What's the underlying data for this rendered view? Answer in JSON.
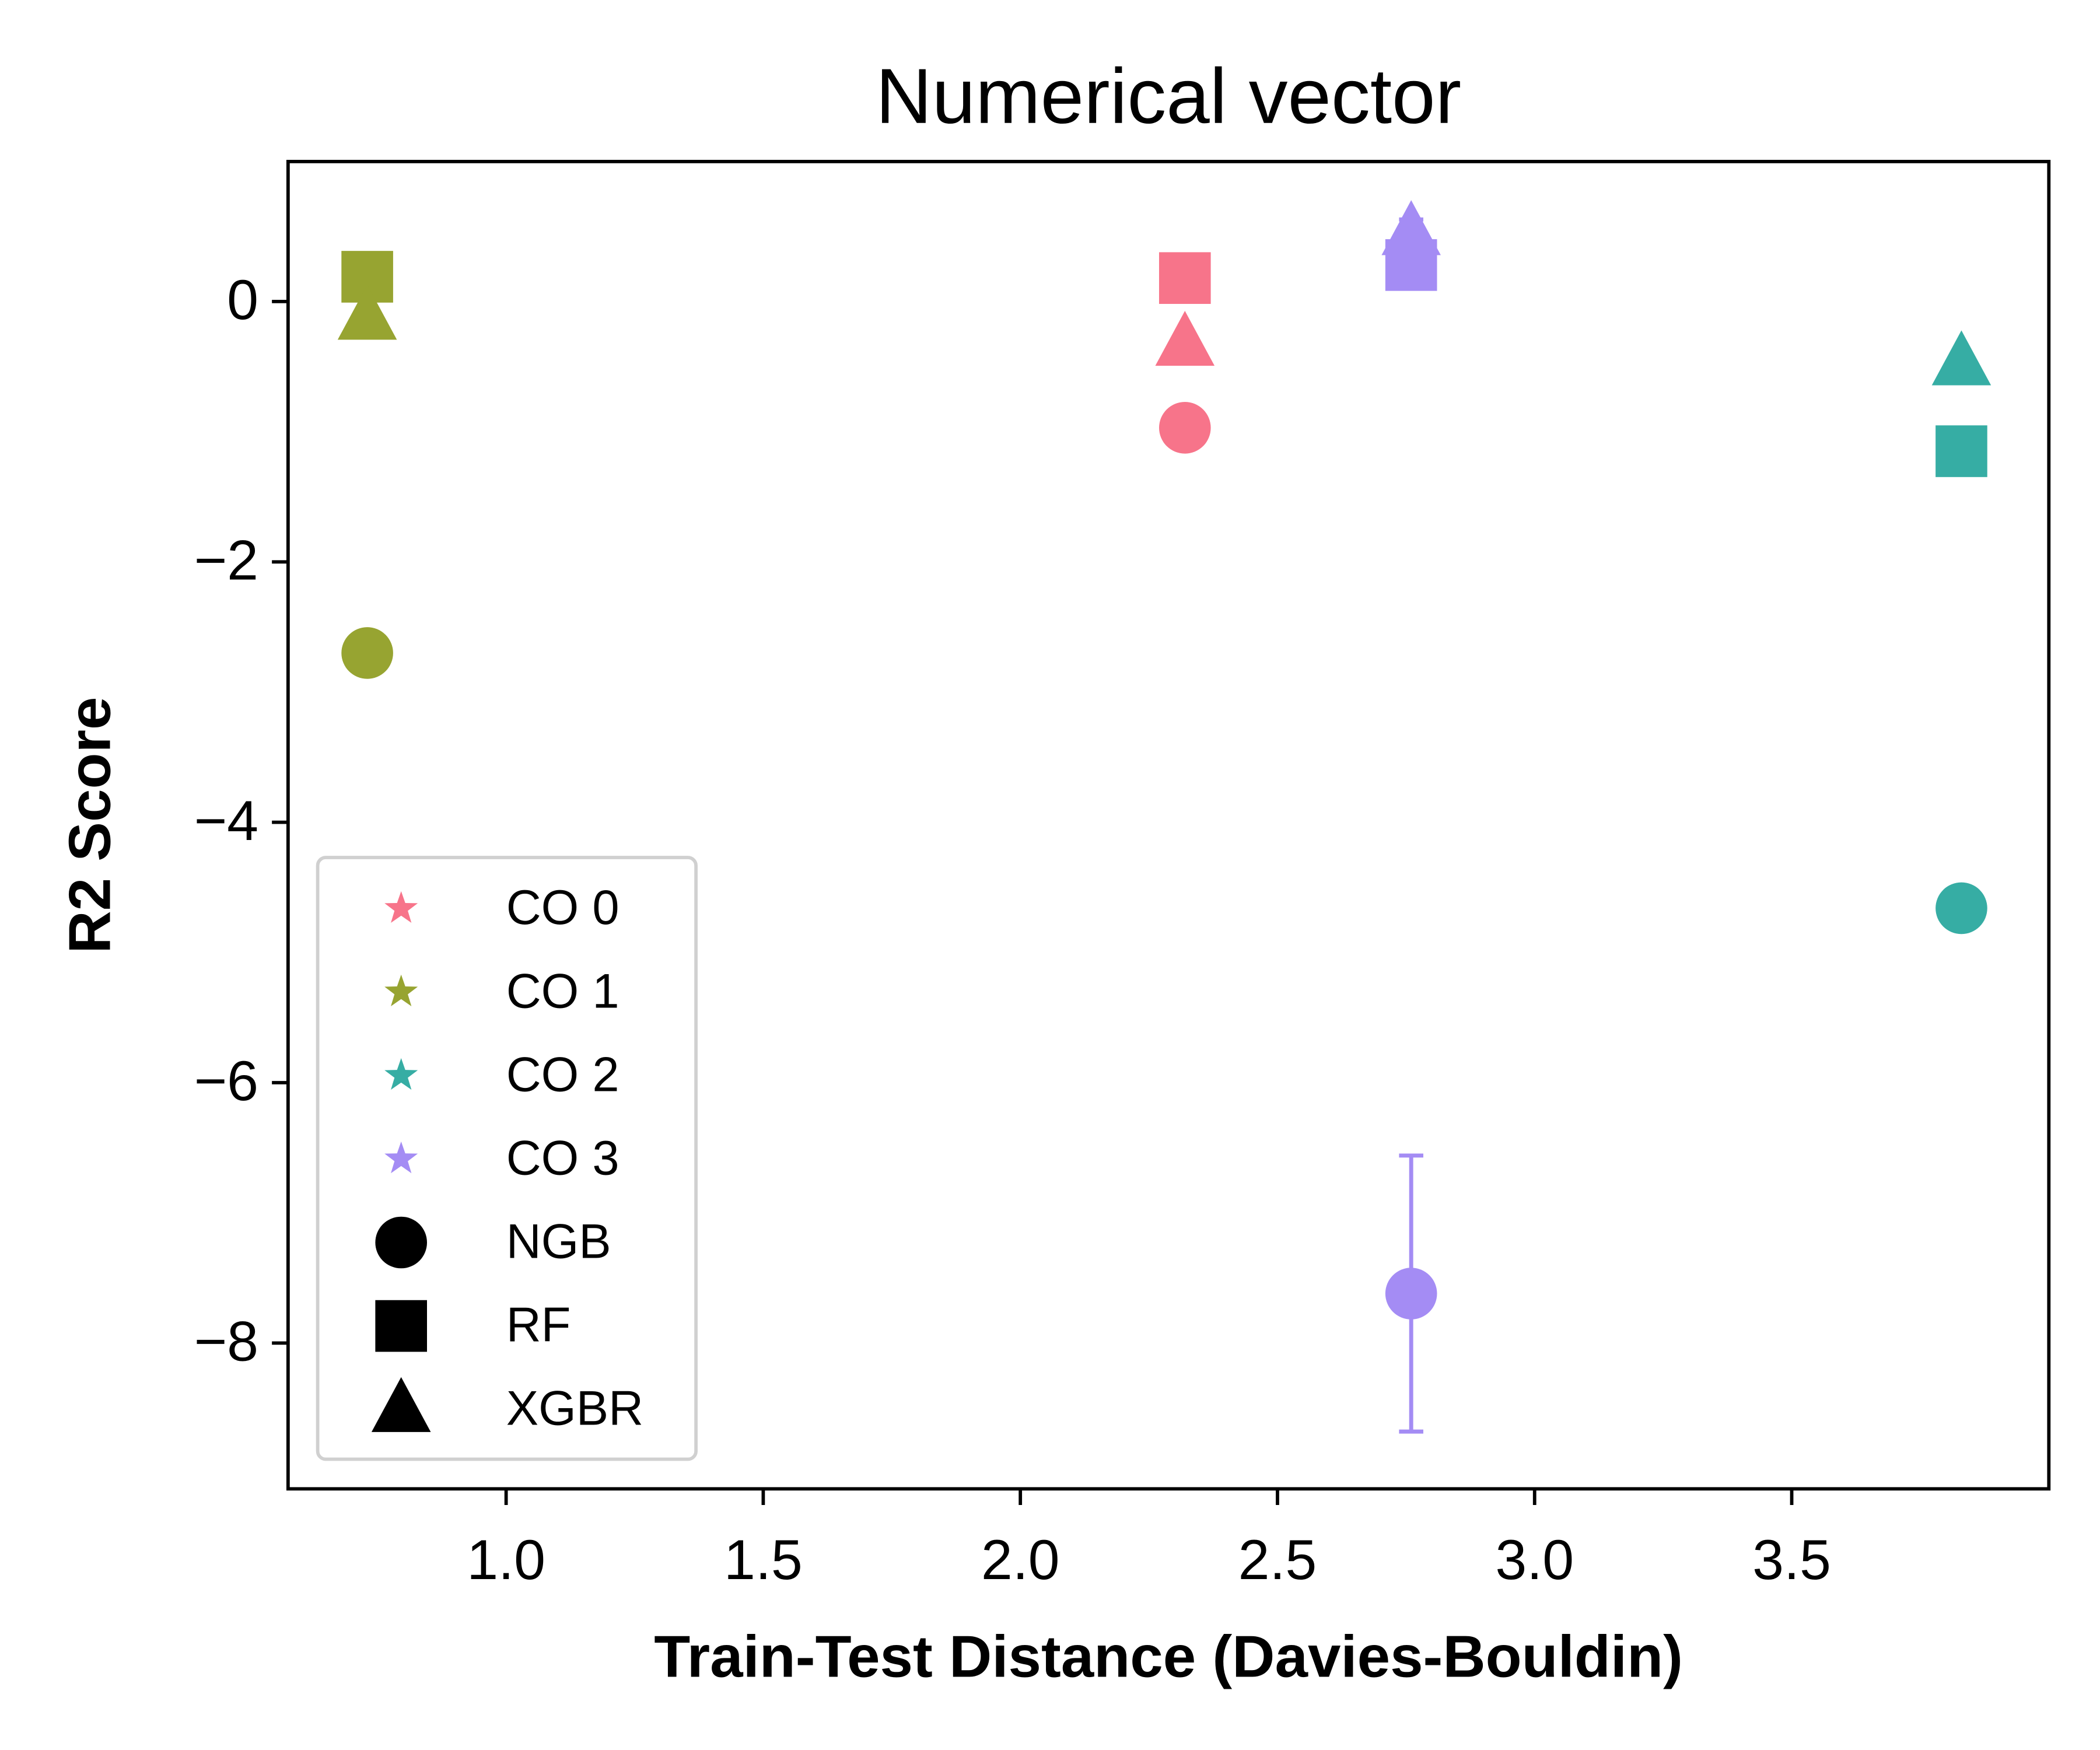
{
  "chart_data": {
    "type": "scatter",
    "title": "Numerical vector",
    "x_label": "Train-Test Distance (Davies-Bouldin)",
    "y_label": "R2 Score",
    "xlim": [
      0.576,
      4.0
    ],
    "ylim": [
      -9.12,
      1.075
    ],
    "xticks": [
      {
        "value": 1,
        "label": "1.0"
      },
      {
        "value": 1.5,
        "label": "1.5"
      },
      {
        "value": 2,
        "label": "2.0"
      },
      {
        "value": 2.5,
        "label": "2.5"
      },
      {
        "value": 3,
        "label": "3.0"
      },
      {
        "value": 3.5,
        "label": "3.5"
      }
    ],
    "yticks": [
      {
        "value": 0,
        "label": "0"
      },
      {
        "value": -2,
        "label": "−2"
      },
      {
        "value": -4,
        "label": "−4"
      },
      {
        "value": -6,
        "label": "−6"
      },
      {
        "value": -8,
        "label": "−8"
      }
    ],
    "grid": false,
    "legend": "lower left",
    "models": [
      {
        "name": "NGB",
        "marker": "circle"
      },
      {
        "name": "RF",
        "marker": "square"
      },
      {
        "name": "XGBR",
        "marker": "triangle"
      }
    ],
    "series": [
      {
        "name": "CO 0",
        "color": "#f7748a",
        "x": 2.32,
        "values": [
          -0.97,
          0.18,
          -0.32
        ],
        "errors": [
          0.05,
          0.05,
          0.05
        ]
      },
      {
        "name": "CO 1",
        "color": "#97a431",
        "x": 0.73,
        "values": [
          -2.7,
          0.19,
          -0.12
        ],
        "errors": [
          0.05,
          0.05,
          0.05
        ]
      },
      {
        "name": "CO 2",
        "color": "#36ada4",
        "x": 3.83,
        "values": [
          -4.66,
          -1.15,
          -0.47
        ],
        "errors": [
          0.05,
          0.05,
          0.05
        ]
      },
      {
        "name": "CO 3",
        "color": "#a48cf4",
        "x": 2.76,
        "values": [
          -7.62,
          0.28,
          0.53
        ],
        "errors": [
          1.06,
          0.1,
          0.1
        ]
      }
    ]
  }
}
